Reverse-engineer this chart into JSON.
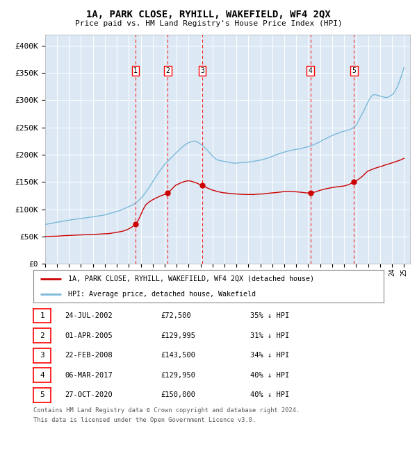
{
  "title": "1A, PARK CLOSE, RYHILL, WAKEFIELD, WF4 2QX",
  "subtitle": "Price paid vs. HM Land Registry's House Price Index (HPI)",
  "bg_color": "#dce9f5",
  "hpi_color": "#7ab8d9",
  "price_color": "#cc0000",
  "ylim": [
    0,
    420000
  ],
  "yticks": [
    0,
    50000,
    100000,
    150000,
    200000,
    250000,
    300000,
    350000,
    400000
  ],
  "ytick_labels": [
    "£0",
    "£50K",
    "£100K",
    "£150K",
    "£200K",
    "£250K",
    "£300K",
    "£350K",
    "£400K"
  ],
  "sales": [
    {
      "num": 1,
      "date_label": "24-JUL-2002",
      "year": 2002.56,
      "price": 72500,
      "pct": "35%"
    },
    {
      "num": 2,
      "date_label": "01-APR-2005",
      "year": 2005.25,
      "price": 129995,
      "pct": "31%"
    },
    {
      "num": 3,
      "date_label": "22-FEB-2008",
      "year": 2008.14,
      "price": 143500,
      "pct": "34%"
    },
    {
      "num": 4,
      "date_label": "06-MAR-2017",
      "year": 2017.18,
      "price": 129950,
      "pct": "40%"
    },
    {
      "num": 5,
      "date_label": "27-OCT-2020",
      "year": 2020.82,
      "price": 150000,
      "pct": "40%"
    }
  ],
  "legend_line1": "1A, PARK CLOSE, RYHILL, WAKEFIELD, WF4 2QX (detached house)",
  "legend_line2": "HPI: Average price, detached house, Wakefield",
  "footer1": "Contains HM Land Registry data © Crown copyright and database right 2024.",
  "footer2": "This data is licensed under the Open Government Licence v3.0."
}
